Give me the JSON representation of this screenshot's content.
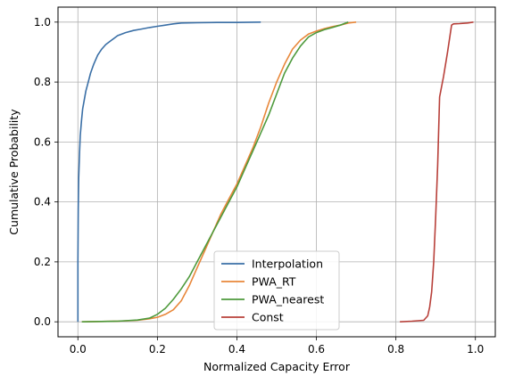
{
  "chart_data": {
    "type": "line",
    "title": "",
    "xlabel": "Normalized Capacity Error",
    "ylabel": "Cumulative Probability",
    "xlim": [
      -0.05,
      1.05
    ],
    "ylim": [
      -0.05,
      1.05
    ],
    "xticks": [
      "0.0",
      "0.2",
      "0.4",
      "0.6",
      "0.8",
      "1.0"
    ],
    "xtick_values": [
      0.0,
      0.2,
      0.4,
      0.6,
      0.8,
      1.0
    ],
    "yticks": [
      "0.0",
      "0.2",
      "0.4",
      "0.6",
      "0.8",
      "1.0"
    ],
    "ytick_values": [
      0.0,
      0.2,
      0.4,
      0.6,
      0.8,
      1.0
    ],
    "grid": true,
    "legend_position": "lower-center",
    "series": [
      {
        "name": "Interpolation",
        "color": "#3a6fa6",
        "x": [
          0.0,
          0.0,
          0.001,
          0.002,
          0.004,
          0.006,
          0.009,
          0.012,
          0.016,
          0.02,
          0.026,
          0.032,
          0.04,
          0.05,
          0.06,
          0.07,
          0.085,
          0.1,
          0.12,
          0.14,
          0.16,
          0.18,
          0.2,
          0.22,
          0.24,
          0.26,
          0.3,
          0.35,
          0.4,
          0.46
        ],
        "y": [
          0.0,
          0.2,
          0.38,
          0.48,
          0.56,
          0.62,
          0.67,
          0.71,
          0.74,
          0.77,
          0.8,
          0.83,
          0.86,
          0.89,
          0.91,
          0.925,
          0.94,
          0.955,
          0.965,
          0.972,
          0.977,
          0.982,
          0.986,
          0.99,
          0.994,
          0.997,
          0.998,
          0.999,
          0.999,
          1.0
        ]
      },
      {
        "name": "PWA_RT",
        "color": "#e8873a",
        "x": [
          0.01,
          0.1,
          0.15,
          0.18,
          0.2,
          0.22,
          0.24,
          0.26,
          0.28,
          0.3,
          0.32,
          0.34,
          0.36,
          0.38,
          0.4,
          0.42,
          0.44,
          0.46,
          0.48,
          0.5,
          0.52,
          0.54,
          0.56,
          0.58,
          0.6,
          0.62,
          0.64,
          0.66,
          0.68,
          0.7
        ],
        "y": [
          0.0,
          0.002,
          0.005,
          0.01,
          0.015,
          0.025,
          0.04,
          0.07,
          0.12,
          0.18,
          0.24,
          0.3,
          0.36,
          0.41,
          0.46,
          0.52,
          0.58,
          0.65,
          0.73,
          0.8,
          0.86,
          0.91,
          0.94,
          0.96,
          0.97,
          0.978,
          0.985,
          0.99,
          0.997,
          1.0
        ]
      },
      {
        "name": "PWA_nearest",
        "color": "#4e9a3c",
        "x": [
          0.01,
          0.1,
          0.15,
          0.18,
          0.2,
          0.22,
          0.24,
          0.26,
          0.28,
          0.3,
          0.32,
          0.34,
          0.36,
          0.38,
          0.4,
          0.42,
          0.44,
          0.46,
          0.48,
          0.5,
          0.52,
          0.54,
          0.56,
          0.58,
          0.6,
          0.62,
          0.64,
          0.66,
          0.68
        ],
        "y": [
          0.0,
          0.002,
          0.006,
          0.012,
          0.025,
          0.045,
          0.075,
          0.11,
          0.15,
          0.2,
          0.25,
          0.3,
          0.35,
          0.4,
          0.45,
          0.51,
          0.57,
          0.63,
          0.69,
          0.76,
          0.83,
          0.88,
          0.92,
          0.95,
          0.965,
          0.975,
          0.982,
          0.99,
          1.0
        ]
      },
      {
        "name": "Const",
        "color": "#b8403a",
        "x": [
          0.81,
          0.84,
          0.87,
          0.88,
          0.885,
          0.89,
          0.895,
          0.9,
          0.905,
          0.91,
          0.92,
          0.93,
          0.94,
          0.945,
          0.96,
          0.98,
          0.995
        ],
        "y": [
          0.0,
          0.002,
          0.005,
          0.02,
          0.05,
          0.1,
          0.2,
          0.35,
          0.52,
          0.75,
          0.82,
          0.9,
          0.99,
          0.994,
          0.995,
          0.997,
          1.0
        ]
      }
    ]
  }
}
